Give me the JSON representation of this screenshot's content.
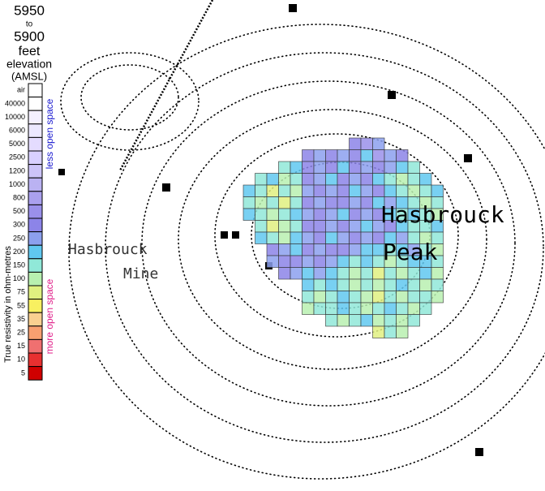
{
  "legend": {
    "elevation": {
      "top": "5950",
      "to": "to",
      "bottom": "5900",
      "unit": "feet",
      "label": "elevation",
      "datum": "(AMSL)"
    },
    "levels": [
      "air",
      40000,
      10000,
      6000,
      5000,
      2500,
      1200,
      1000,
      800,
      500,
      300,
      250,
      200,
      150,
      100,
      75,
      55,
      35,
      25,
      15,
      10,
      5
    ],
    "colors": [
      "#ffffff",
      "#ffffff",
      "#f4f0ff",
      "#ece8ff",
      "#e4dcff",
      "#d8d0ff",
      "#ccc4f8",
      "#bab2f2",
      "#aaa0ee",
      "#9a90ea",
      "#8c84e8",
      "#8ca0ee",
      "#60c8f0",
      "#90e8d8",
      "#b8f0b0",
      "#e0f080",
      "#f8f060",
      "#fad090",
      "#f8a070",
      "#f07070",
      "#e83030",
      "#d00000"
    ],
    "axis_title": "True resistivity in ohm-metres",
    "high_note": "less open space",
    "low_note": "more open space"
  },
  "map": {
    "labels": [
      "Hasbrouck",
      "Peak",
      "Hasbrouck",
      "Mine"
    ],
    "grid": [
      [
        null,
        null,
        null,
        null,
        null,
        null,
        null,
        null,
        null,
        300,
        500,
        250,
        null,
        null,
        null,
        null,
        null
      ],
      [
        null,
        null,
        null,
        null,
        null,
        300,
        250,
        300,
        250,
        300,
        200,
        500,
        250,
        300,
        null,
        null,
        null
      ],
      [
        null,
        null,
        null,
        150,
        200,
        300,
        250,
        300,
        200,
        300,
        250,
        300,
        250,
        200,
        150,
        null,
        null
      ],
      [
        null,
        150,
        200,
        100,
        150,
        300,
        250,
        200,
        300,
        250,
        300,
        200,
        150,
        100,
        150,
        200,
        null
      ],
      [
        200,
        150,
        75,
        150,
        100,
        250,
        300,
        250,
        300,
        200,
        250,
        300,
        200,
        150,
        100,
        150,
        200
      ],
      [
        150,
        100,
        150,
        75,
        150,
        300,
        250,
        300,
        300,
        250,
        300,
        200,
        250,
        200,
        150,
        100,
        150
      ],
      [
        200,
        150,
        100,
        150,
        200,
        250,
        300,
        250,
        200,
        300,
        250,
        300,
        200,
        150,
        200,
        150,
        100
      ],
      [
        null,
        150,
        75,
        100,
        150,
        300,
        300,
        250,
        300,
        250,
        200,
        250,
        300,
        200,
        150,
        150,
        200
      ],
      [
        null,
        200,
        150,
        100,
        200,
        250,
        300,
        200,
        250,
        300,
        250,
        300,
        200,
        250,
        150,
        100,
        150
      ],
      [
        null,
        null,
        300,
        250,
        200,
        300,
        250,
        300,
        300,
        250,
        200,
        200,
        150,
        200,
        250,
        150,
        100
      ],
      [
        null,
        null,
        250,
        300,
        300,
        250,
        300,
        250,
        200,
        150,
        200,
        150,
        100,
        150,
        200,
        200,
        150
      ],
      [
        null,
        null,
        null,
        300,
        250,
        200,
        250,
        200,
        150,
        100,
        150,
        75,
        150,
        100,
        150,
        200,
        100
      ],
      [
        null,
        null,
        null,
        null,
        null,
        200,
        150,
        200,
        150,
        100,
        150,
        100,
        150,
        200,
        150,
        100,
        150
      ],
      [
        null,
        null,
        null,
        null,
        null,
        150,
        100,
        150,
        200,
        150,
        100,
        75,
        150,
        100,
        150,
        150,
        100
      ],
      [
        null,
        null,
        null,
        null,
        null,
        100,
        150,
        150,
        200,
        150,
        100,
        150,
        200,
        150,
        100,
        150,
        null
      ],
      [
        null,
        null,
        null,
        null,
        null,
        null,
        null,
        150,
        100,
        150,
        200,
        100,
        150,
        100,
        150,
        null,
        null
      ],
      [
        null,
        null,
        null,
        null,
        null,
        null,
        null,
        null,
        null,
        null,
        null,
        75,
        150,
        100,
        null,
        null,
        null
      ]
    ]
  }
}
